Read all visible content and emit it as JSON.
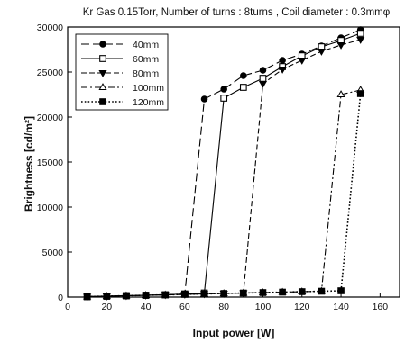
{
  "chart_data": {
    "type": "line",
    "title": "Kr Gas 0.15Torr, Number of turns : 8turns , Coil diameter : 0.3mmφ",
    "xlabel": "Input power [W]",
    "ylabel": "Brightness [cd/m²]",
    "xlim": [
      0,
      170
    ],
    "ylim": [
      0,
      30000
    ],
    "xticks": [
      0,
      20,
      40,
      60,
      80,
      100,
      120,
      140,
      160
    ],
    "yticks": [
      0,
      5000,
      10000,
      15000,
      20000,
      25000,
      30000
    ],
    "xtick_labels": [
      "0",
      "20",
      "40",
      "60",
      "80",
      "100",
      "120",
      "140",
      "160"
    ],
    "ytick_labels": [
      "0",
      "5000",
      "10000",
      "15000",
      "20000",
      "25000",
      "30000"
    ],
    "grid": false,
    "legend_position": "top-left",
    "series": [
      {
        "name": "40mm",
        "marker": "circle-filled",
        "dash": "long-dash",
        "x": [
          10,
          20,
          30,
          40,
          50,
          60,
          70,
          80,
          90,
          100,
          110,
          120,
          130,
          140,
          150
        ],
        "y": [
          50,
          100,
          150,
          200,
          250,
          350,
          22000,
          23100,
          24600,
          25200,
          26300,
          27000,
          27900,
          28800,
          29700
        ]
      },
      {
        "name": "60mm",
        "marker": "square-open",
        "dash": "solid",
        "x": [
          10,
          20,
          30,
          40,
          50,
          60,
          70,
          80,
          90,
          100,
          110,
          120,
          130,
          140,
          150
        ],
        "y": [
          50,
          100,
          150,
          200,
          250,
          350,
          450,
          22100,
          23300,
          24300,
          25600,
          26800,
          27800,
          28500,
          29300
        ]
      },
      {
        "name": "80mm",
        "marker": "triangle-down-filled",
        "dash": "dash",
        "x": [
          10,
          20,
          30,
          40,
          50,
          60,
          70,
          80,
          90,
          100,
          110,
          120,
          130,
          140,
          150
        ],
        "y": [
          50,
          100,
          150,
          200,
          250,
          300,
          350,
          400,
          450,
          23700,
          25300,
          26300,
          27300,
          28000,
          28600
        ]
      },
      {
        "name": "100mm",
        "marker": "triangle-up-open",
        "dash": "dash-dot",
        "x": [
          10,
          20,
          30,
          40,
          50,
          60,
          70,
          80,
          90,
          100,
          110,
          120,
          130,
          140,
          150
        ],
        "y": [
          50,
          100,
          150,
          200,
          250,
          300,
          350,
          400,
          450,
          500,
          550,
          600,
          650,
          22500,
          23000
        ]
      },
      {
        "name": "120mm",
        "marker": "square-filled",
        "dash": "dotted",
        "x": [
          10,
          20,
          30,
          40,
          50,
          60,
          70,
          80,
          90,
          100,
          110,
          120,
          130,
          140,
          150
        ],
        "y": [
          50,
          100,
          150,
          200,
          250,
          300,
          350,
          400,
          450,
          500,
          550,
          600,
          650,
          700,
          22600
        ]
      }
    ]
  }
}
